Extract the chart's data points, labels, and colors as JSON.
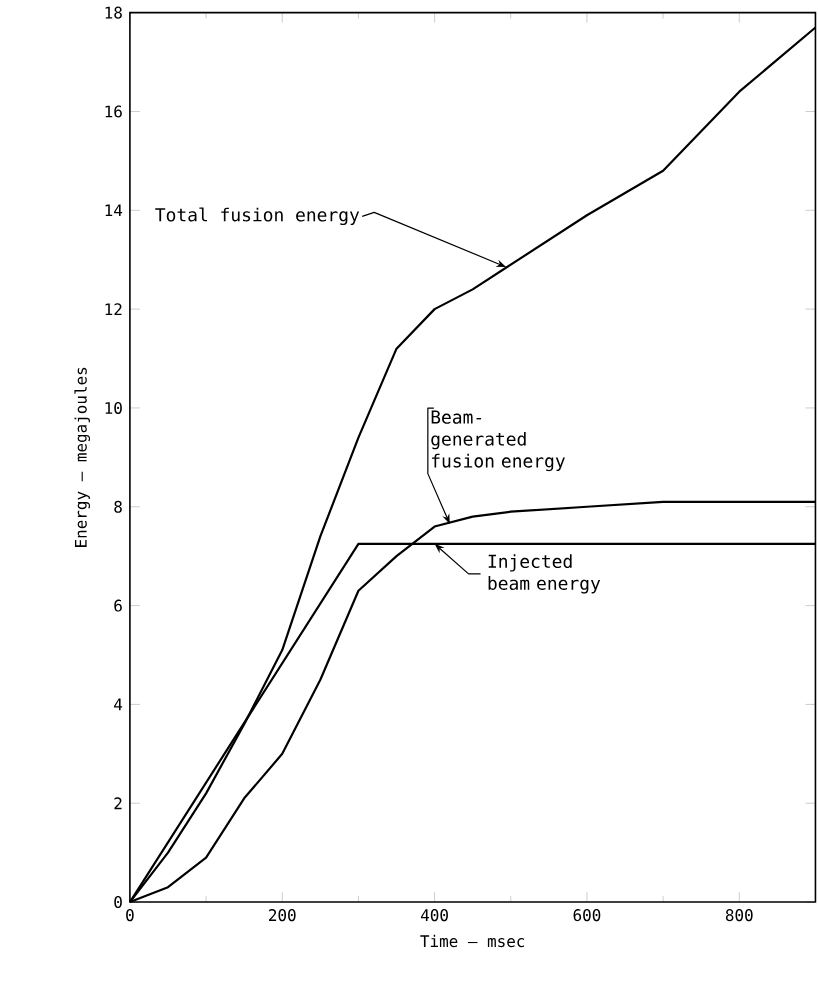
{
  "chart_data": {
    "type": "line",
    "xlabel": "Time — msec",
    "ylabel": "Energy — megajoules",
    "xlim": [
      0,
      900
    ],
    "ylim": [
      0,
      18
    ],
    "xticks": [
      0,
      200,
      400,
      600,
      800
    ],
    "yticks": [
      0,
      2,
      4,
      6,
      8,
      10,
      12,
      14,
      16,
      18
    ],
    "annotations": [
      {
        "text": "Total fusion energy",
        "x": 494,
        "y": 12.85
      },
      {
        "text": "Beam-generated fusion energy",
        "x": 420,
        "y": 7.65
      },
      {
        "text": "Injected beam energy",
        "x": 400,
        "y": 7.25
      }
    ],
    "series": [
      {
        "color": "#000000",
        "x": [
          0,
          50,
          100,
          150,
          200,
          250,
          300,
          350,
          400,
          450,
          500,
          600,
          700,
          800,
          900
        ],
        "values": [
          0,
          1.0,
          2.2,
          3.6,
          5.1,
          7.4,
          9.4,
          11.2,
          12.0,
          12.4,
          12.9,
          13.9,
          14.8,
          16.4,
          17.7
        ]
      },
      {
        "color": "#000000",
        "x": [
          0,
          50,
          100,
          150,
          200,
          250,
          300,
          350,
          400,
          450,
          500,
          600,
          700,
          800,
          900
        ],
        "values": [
          0,
          0.3,
          0.9,
          2.1,
          3.0,
          4.5,
          6.3,
          7.0,
          7.6,
          7.8,
          7.9,
          8.0,
          8.1,
          8.1,
          8.1
        ]
      },
      {
        "color": "#000000",
        "x": [
          0,
          300,
          900
        ],
        "values": [
          0,
          7.25,
          7.25
        ]
      }
    ]
  }
}
